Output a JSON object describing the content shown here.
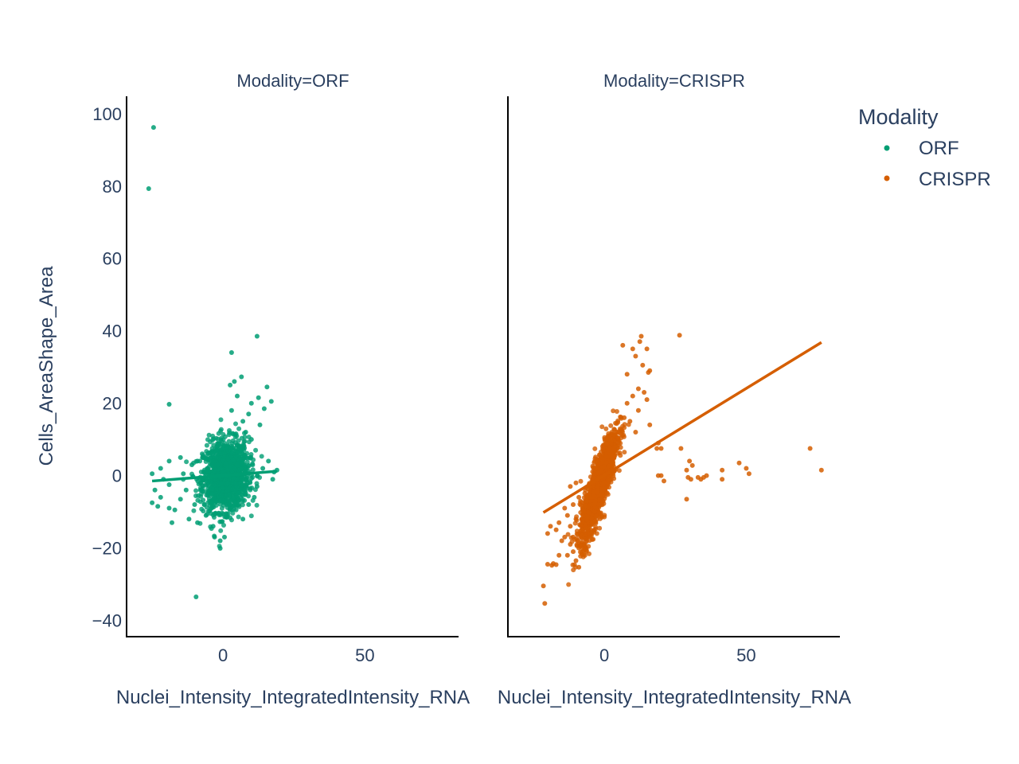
{
  "chart_data": {
    "type": "scatter",
    "facet_by": "Modality",
    "x_label": "Nuclei_Intensity_IntegratedIntensity_RNA",
    "y_label": "Cells_AreaShape_Area",
    "x_ticks": [
      0,
      50
    ],
    "y_ticks": [
      100,
      80,
      60,
      40,
      20,
      0,
      -20,
      -40
    ],
    "x_range": [
      -34,
      83
    ],
    "y_range": [
      -44.5,
      104.8
    ],
    "legend": {
      "title": "Modality",
      "position": "top-right"
    },
    "panels": [
      {
        "title": "Modality=ORF",
        "series": "ORF",
        "color": "#009e73",
        "trendline": [
          [
            -25,
            -1.5
          ],
          [
            19,
            1.2
          ]
        ],
        "cluster": {
          "center": [
            1,
            0
          ],
          "sx": 4,
          "sy": 4.8,
          "corr": 0.1,
          "n": 1400
        },
        "points": [
          [
            -24.5,
            96.2
          ],
          [
            -26.2,
            79.3
          ],
          [
            12,
            38.5
          ],
          [
            3,
            34
          ],
          [
            4,
            26
          ],
          [
            6.5,
            27.3
          ],
          [
            5,
            22
          ],
          [
            2.5,
            25
          ],
          [
            15.5,
            24.5
          ],
          [
            12.5,
            21.5
          ],
          [
            10,
            20
          ],
          [
            17,
            20.5
          ],
          [
            14.5,
            18.5
          ],
          [
            13,
            14
          ],
          [
            -19,
            19.7
          ],
          [
            -15,
            5
          ],
          [
            -19,
            4
          ],
          [
            -22,
            2
          ],
          [
            -25,
            0.5
          ],
          [
            -21,
            -1
          ],
          [
            -19,
            -2.5
          ],
          [
            -24,
            -4
          ],
          [
            -22,
            -6
          ],
          [
            -25,
            -7.5
          ],
          [
            -19,
            -9
          ],
          [
            -23,
            -8.5
          ],
          [
            -17,
            -9.5
          ],
          [
            -15,
            -6.5
          ],
          [
            -18,
            -13
          ],
          [
            -12,
            -12
          ],
          [
            -9,
            -13
          ],
          [
            -10,
            -8
          ],
          [
            -13,
            -4
          ],
          [
            -11,
            3
          ],
          [
            -9,
            4
          ],
          [
            -7,
            5
          ],
          [
            -14,
            0.5
          ],
          [
            -8,
            -4
          ],
          [
            -6,
            -11
          ],
          [
            -3.5,
            -14
          ],
          [
            -3,
            -17
          ],
          [
            -1,
            -18
          ],
          [
            0.5,
            -17
          ],
          [
            -1,
            -20.1
          ],
          [
            -9.5,
            -33.5
          ],
          [
            7,
            -12
          ],
          [
            9,
            -8
          ],
          [
            11,
            -6
          ],
          [
            12,
            -3
          ],
          [
            14,
            2
          ],
          [
            16,
            4
          ],
          [
            18,
            1
          ],
          [
            17.5,
            -1
          ],
          [
            19,
            1.5
          ],
          [
            8,
            12
          ],
          [
            10,
            10
          ],
          [
            7,
            15
          ],
          [
            9,
            17
          ],
          [
            3,
            18
          ],
          [
            6,
            8
          ]
        ]
      },
      {
        "title": "Modality=CRISPR",
        "series": "CRISPR",
        "color": "#d55e00",
        "trendline": [
          [
            -21.5,
            -10.2
          ],
          [
            76.5,
            36.8
          ]
        ],
        "cluster": {
          "center": [
            -2,
            -3
          ],
          "sx": 3.2,
          "sy": 7.5,
          "corr": 0.85,
          "n": 1500
        },
        "points": [
          [
            13,
            38.5
          ],
          [
            12.5,
            37
          ],
          [
            26.5,
            38.8
          ],
          [
            6.5,
            36
          ],
          [
            10,
            35
          ],
          [
            15,
            35
          ],
          [
            11,
            33
          ],
          [
            13.5,
            30.5
          ],
          [
            16,
            29
          ],
          [
            15.5,
            28.5
          ],
          [
            8,
            28
          ],
          [
            12,
            24
          ],
          [
            14,
            23
          ],
          [
            10,
            22
          ],
          [
            15,
            21
          ],
          [
            8,
            20
          ],
          [
            12,
            18
          ],
          [
            16,
            14
          ],
          [
            9,
            15
          ],
          [
            11,
            12
          ],
          [
            7,
            16
          ],
          [
            19,
            9
          ],
          [
            18.5,
            7.5
          ],
          [
            20,
            7.5
          ],
          [
            27,
            7.5
          ],
          [
            30,
            4
          ],
          [
            31,
            2.8
          ],
          [
            29,
            1.5
          ],
          [
            29.5,
            -0.5
          ],
          [
            30.5,
            -1
          ],
          [
            33,
            -0.5
          ],
          [
            35,
            -0.5
          ],
          [
            36,
            0
          ],
          [
            34,
            -1
          ],
          [
            41.5,
            -1
          ],
          [
            41.5,
            1.5
          ],
          [
            47.5,
            3.5
          ],
          [
            50,
            2
          ],
          [
            51,
            0.5
          ],
          [
            72.5,
            7.5
          ],
          [
            76.5,
            1.5
          ],
          [
            19,
            0
          ],
          [
            20,
            0
          ],
          [
            21,
            -1.5
          ],
          [
            29,
            -6.5
          ],
          [
            -21.5,
            -30.5
          ],
          [
            -21,
            -35.3
          ],
          [
            -20,
            -24.5
          ],
          [
            -18.5,
            -24.8
          ],
          [
            -17,
            -24.6
          ],
          [
            -18,
            -24.3
          ],
          [
            -9,
            -25.3
          ],
          [
            -10,
            -23.5
          ],
          [
            -13,
            -22
          ],
          [
            -16,
            -22
          ],
          [
            -12,
            -19
          ],
          [
            -14,
            -17
          ],
          [
            -17,
            -15
          ],
          [
            -19,
            -14
          ],
          [
            -16,
            -13
          ],
          [
            -20,
            -16
          ],
          [
            -15,
            -18
          ],
          [
            -11,
            -17
          ],
          [
            -10,
            -12
          ],
          [
            -13,
            -11
          ],
          [
            -8,
            -15
          ],
          [
            -7,
            -19
          ],
          [
            -9,
            -20
          ],
          [
            -11,
            -21
          ],
          [
            -12,
            -14
          ],
          [
            -14,
            -9
          ],
          [
            -11,
            -8
          ],
          [
            -12,
            -3
          ],
          [
            -9,
            -6
          ],
          [
            -10,
            -2
          ]
        ]
      }
    ]
  }
}
